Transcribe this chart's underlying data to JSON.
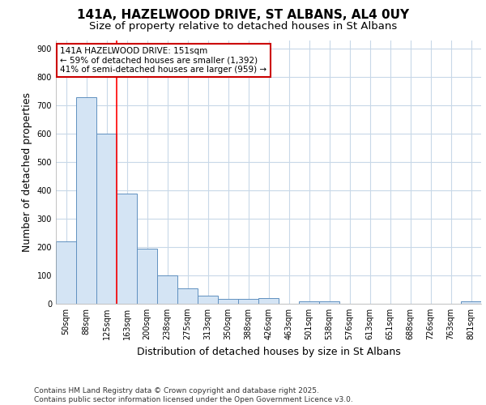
{
  "title_line1": "141A, HAZELWOOD DRIVE, ST ALBANS, AL4 0UY",
  "title_line2": "Size of property relative to detached houses in St Albans",
  "xlabel": "Distribution of detached houses by size in St Albans",
  "ylabel": "Number of detached properties",
  "categories": [
    "50sqm",
    "88sqm",
    "125sqm",
    "163sqm",
    "200sqm",
    "238sqm",
    "275sqm",
    "313sqm",
    "350sqm",
    "388sqm",
    "426sqm",
    "463sqm",
    "501sqm",
    "538sqm",
    "576sqm",
    "613sqm",
    "651sqm",
    "688sqm",
    "726sqm",
    "763sqm",
    "801sqm"
  ],
  "values": [
    220,
    730,
    600,
    390,
    195,
    100,
    55,
    30,
    18,
    18,
    20,
    0,
    10,
    10,
    0,
    0,
    0,
    0,
    0,
    0,
    8
  ],
  "bar_color": "#d4e4f4",
  "bar_edge_color": "#6090c0",
  "red_line_x": 2.5,
  "annotation_text_line1": "141A HAZELWOOD DRIVE: 151sqm",
  "annotation_text_line2": "← 59% of detached houses are smaller (1,392)",
  "annotation_text_line3": "41% of semi-detached houses are larger (959) →",
  "annotation_box_facecolor": "#ffffff",
  "annotation_box_edgecolor": "#cc0000",
  "ylim": [
    0,
    930
  ],
  "yticks": [
    0,
    100,
    200,
    300,
    400,
    500,
    600,
    700,
    800,
    900
  ],
  "footer_text": "Contains HM Land Registry data © Crown copyright and database right 2025.\nContains public sector information licensed under the Open Government Licence v3.0.",
  "background_color": "#ffffff",
  "plot_bg_color": "#ffffff",
  "grid_color": "#c8d8e8",
  "title_fontsize": 11,
  "subtitle_fontsize": 9.5,
  "tick_fontsize": 7,
  "label_fontsize": 9,
  "footer_fontsize": 6.5
}
